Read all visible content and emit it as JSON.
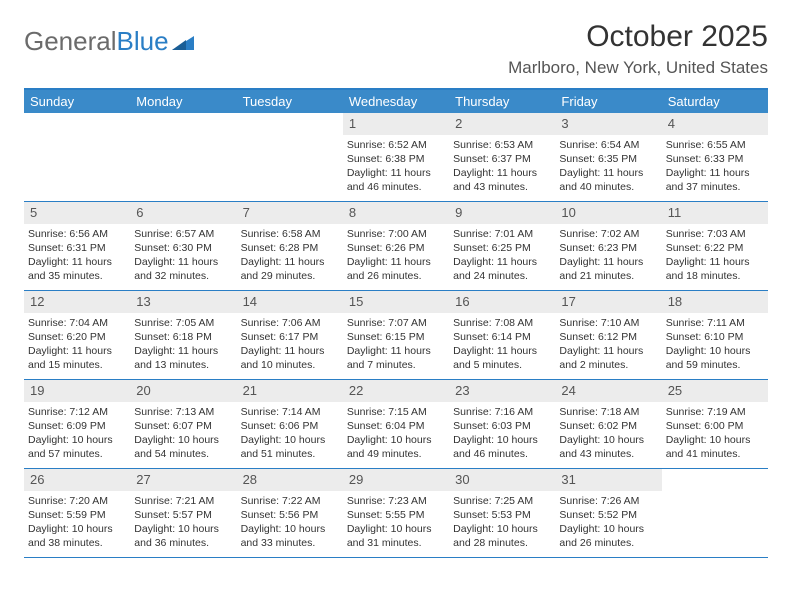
{
  "logo": {
    "text1": "General",
    "text2": "Blue"
  },
  "title": "October 2025",
  "location": "Marlboro, New York, United States",
  "colors": {
    "header_bg": "#3a8ac9",
    "header_text": "#ffffff",
    "border": "#2a7ec5",
    "daynum_bg": "#ececec",
    "text": "#333333",
    "logo_gray": "#6b6b6b",
    "logo_blue": "#2a7ec5"
  },
  "day_names": [
    "Sunday",
    "Monday",
    "Tuesday",
    "Wednesday",
    "Thursday",
    "Friday",
    "Saturday"
  ],
  "weeks": [
    [
      {
        "day": "",
        "sunrise": "",
        "sunset": "",
        "daylight1": "",
        "daylight2": ""
      },
      {
        "day": "",
        "sunrise": "",
        "sunset": "",
        "daylight1": "",
        "daylight2": ""
      },
      {
        "day": "",
        "sunrise": "",
        "sunset": "",
        "daylight1": "",
        "daylight2": ""
      },
      {
        "day": "1",
        "sunrise": "Sunrise: 6:52 AM",
        "sunset": "Sunset: 6:38 PM",
        "daylight1": "Daylight: 11 hours",
        "daylight2": "and 46 minutes."
      },
      {
        "day": "2",
        "sunrise": "Sunrise: 6:53 AM",
        "sunset": "Sunset: 6:37 PM",
        "daylight1": "Daylight: 11 hours",
        "daylight2": "and 43 minutes."
      },
      {
        "day": "3",
        "sunrise": "Sunrise: 6:54 AM",
        "sunset": "Sunset: 6:35 PM",
        "daylight1": "Daylight: 11 hours",
        "daylight2": "and 40 minutes."
      },
      {
        "day": "4",
        "sunrise": "Sunrise: 6:55 AM",
        "sunset": "Sunset: 6:33 PM",
        "daylight1": "Daylight: 11 hours",
        "daylight2": "and 37 minutes."
      }
    ],
    [
      {
        "day": "5",
        "sunrise": "Sunrise: 6:56 AM",
        "sunset": "Sunset: 6:31 PM",
        "daylight1": "Daylight: 11 hours",
        "daylight2": "and 35 minutes."
      },
      {
        "day": "6",
        "sunrise": "Sunrise: 6:57 AM",
        "sunset": "Sunset: 6:30 PM",
        "daylight1": "Daylight: 11 hours",
        "daylight2": "and 32 minutes."
      },
      {
        "day": "7",
        "sunrise": "Sunrise: 6:58 AM",
        "sunset": "Sunset: 6:28 PM",
        "daylight1": "Daylight: 11 hours",
        "daylight2": "and 29 minutes."
      },
      {
        "day": "8",
        "sunrise": "Sunrise: 7:00 AM",
        "sunset": "Sunset: 6:26 PM",
        "daylight1": "Daylight: 11 hours",
        "daylight2": "and 26 minutes."
      },
      {
        "day": "9",
        "sunrise": "Sunrise: 7:01 AM",
        "sunset": "Sunset: 6:25 PM",
        "daylight1": "Daylight: 11 hours",
        "daylight2": "and 24 minutes."
      },
      {
        "day": "10",
        "sunrise": "Sunrise: 7:02 AM",
        "sunset": "Sunset: 6:23 PM",
        "daylight1": "Daylight: 11 hours",
        "daylight2": "and 21 minutes."
      },
      {
        "day": "11",
        "sunrise": "Sunrise: 7:03 AM",
        "sunset": "Sunset: 6:22 PM",
        "daylight1": "Daylight: 11 hours",
        "daylight2": "and 18 minutes."
      }
    ],
    [
      {
        "day": "12",
        "sunrise": "Sunrise: 7:04 AM",
        "sunset": "Sunset: 6:20 PM",
        "daylight1": "Daylight: 11 hours",
        "daylight2": "and 15 minutes."
      },
      {
        "day": "13",
        "sunrise": "Sunrise: 7:05 AM",
        "sunset": "Sunset: 6:18 PM",
        "daylight1": "Daylight: 11 hours",
        "daylight2": "and 13 minutes."
      },
      {
        "day": "14",
        "sunrise": "Sunrise: 7:06 AM",
        "sunset": "Sunset: 6:17 PM",
        "daylight1": "Daylight: 11 hours",
        "daylight2": "and 10 minutes."
      },
      {
        "day": "15",
        "sunrise": "Sunrise: 7:07 AM",
        "sunset": "Sunset: 6:15 PM",
        "daylight1": "Daylight: 11 hours",
        "daylight2": "and 7 minutes."
      },
      {
        "day": "16",
        "sunrise": "Sunrise: 7:08 AM",
        "sunset": "Sunset: 6:14 PM",
        "daylight1": "Daylight: 11 hours",
        "daylight2": "and 5 minutes."
      },
      {
        "day": "17",
        "sunrise": "Sunrise: 7:10 AM",
        "sunset": "Sunset: 6:12 PM",
        "daylight1": "Daylight: 11 hours",
        "daylight2": "and 2 minutes."
      },
      {
        "day": "18",
        "sunrise": "Sunrise: 7:11 AM",
        "sunset": "Sunset: 6:10 PM",
        "daylight1": "Daylight: 10 hours",
        "daylight2": "and 59 minutes."
      }
    ],
    [
      {
        "day": "19",
        "sunrise": "Sunrise: 7:12 AM",
        "sunset": "Sunset: 6:09 PM",
        "daylight1": "Daylight: 10 hours",
        "daylight2": "and 57 minutes."
      },
      {
        "day": "20",
        "sunrise": "Sunrise: 7:13 AM",
        "sunset": "Sunset: 6:07 PM",
        "daylight1": "Daylight: 10 hours",
        "daylight2": "and 54 minutes."
      },
      {
        "day": "21",
        "sunrise": "Sunrise: 7:14 AM",
        "sunset": "Sunset: 6:06 PM",
        "daylight1": "Daylight: 10 hours",
        "daylight2": "and 51 minutes."
      },
      {
        "day": "22",
        "sunrise": "Sunrise: 7:15 AM",
        "sunset": "Sunset: 6:04 PM",
        "daylight1": "Daylight: 10 hours",
        "daylight2": "and 49 minutes."
      },
      {
        "day": "23",
        "sunrise": "Sunrise: 7:16 AM",
        "sunset": "Sunset: 6:03 PM",
        "daylight1": "Daylight: 10 hours",
        "daylight2": "and 46 minutes."
      },
      {
        "day": "24",
        "sunrise": "Sunrise: 7:18 AM",
        "sunset": "Sunset: 6:02 PM",
        "daylight1": "Daylight: 10 hours",
        "daylight2": "and 43 minutes."
      },
      {
        "day": "25",
        "sunrise": "Sunrise: 7:19 AM",
        "sunset": "Sunset: 6:00 PM",
        "daylight1": "Daylight: 10 hours",
        "daylight2": "and 41 minutes."
      }
    ],
    [
      {
        "day": "26",
        "sunrise": "Sunrise: 7:20 AM",
        "sunset": "Sunset: 5:59 PM",
        "daylight1": "Daylight: 10 hours",
        "daylight2": "and 38 minutes."
      },
      {
        "day": "27",
        "sunrise": "Sunrise: 7:21 AM",
        "sunset": "Sunset: 5:57 PM",
        "daylight1": "Daylight: 10 hours",
        "daylight2": "and 36 minutes."
      },
      {
        "day": "28",
        "sunrise": "Sunrise: 7:22 AM",
        "sunset": "Sunset: 5:56 PM",
        "daylight1": "Daylight: 10 hours",
        "daylight2": "and 33 minutes."
      },
      {
        "day": "29",
        "sunrise": "Sunrise: 7:23 AM",
        "sunset": "Sunset: 5:55 PM",
        "daylight1": "Daylight: 10 hours",
        "daylight2": "and 31 minutes."
      },
      {
        "day": "30",
        "sunrise": "Sunrise: 7:25 AM",
        "sunset": "Sunset: 5:53 PM",
        "daylight1": "Daylight: 10 hours",
        "daylight2": "and 28 minutes."
      },
      {
        "day": "31",
        "sunrise": "Sunrise: 7:26 AM",
        "sunset": "Sunset: 5:52 PM",
        "daylight1": "Daylight: 10 hours",
        "daylight2": "and 26 minutes."
      },
      {
        "day": "",
        "sunrise": "",
        "sunset": "",
        "daylight1": "",
        "daylight2": ""
      }
    ]
  ]
}
